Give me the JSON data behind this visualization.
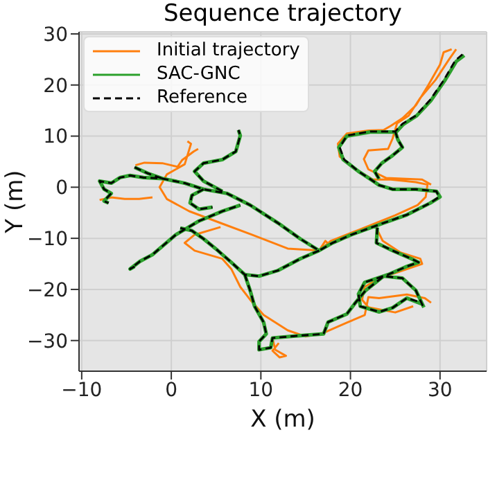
{
  "chart_data": {
    "type": "line",
    "title": "Sequence trajectory",
    "xlabel": "X (m)",
    "ylabel": "Y (m)",
    "xlim": [
      -10.3,
      35.2
    ],
    "ylim": [
      -36,
      30.4
    ],
    "xticks": [
      -10,
      0,
      10,
      20,
      30
    ],
    "yticks": [
      -30,
      -20,
      -10,
      0,
      10,
      20,
      30
    ],
    "grid": true,
    "legend": "top left",
    "marker": "none",
    "series": [
      {
        "name": "Initial trajectory",
        "color": "#ff7f0e",
        "line_style": "solid",
        "x": [
          31.3,
          30.4,
          30,
          28.7,
          27.3,
          25.8,
          24.5,
          23.7,
          22,
          19.6,
          18.6,
          18.8,
          20.6,
          22.5,
          24.5,
          27.3,
          28.6,
          28.4,
          27.5,
          25,
          21,
          17.8,
          16.5,
          17.5,
          17.2,
          16.5,
          13,
          9,
          5.5,
          2,
          -0.5,
          -1.3,
          -0.5,
          1.5,
          2.2,
          1.8,
          null,
          31.8,
          31,
          29.5,
          27.8,
          26.5,
          25.2,
          24.7,
          24.2,
          22,
          21.5,
          22,
          24,
          28,
          29,
          null,
          -4,
          -3,
          -1,
          0.7,
          1.2,
          2.5,
          3,
          null,
          -8,
          -6.7,
          -5.2,
          -3.6,
          -2.1,
          null,
          5.5,
          2.6,
          1.5,
          2.6,
          5.7,
          6.7,
          7.7,
          8.8,
          10.3,
          13,
          15,
          17,
          19.6,
          21.6,
          22,
          23.2,
          26.3,
          28.3,
          29,
          null,
          11.3,
          11.6,
          12.8,
          12.1,
          11.3,
          12,
          null,
          22.9,
          23.6,
          25.6,
          27.8,
          28,
          25.5,
          23,
          21.6,
          21.3,
          22,
          25,
          27
        ],
        "values": [
          27,
          26.4,
          24,
          20,
          16,
          13.5,
          12,
          11.2,
          11.1,
          10.5,
          8.5,
          6,
          3.5,
          1.5,
          1.5,
          1,
          0.5,
          -1.9,
          -3.5,
          -5.5,
          -8.3,
          -10.5,
          -12.4,
          -11,
          -10.5,
          -12.4,
          -12,
          -9.3,
          -7,
          -4.7,
          -2.3,
          0,
          2.5,
          4.5,
          8.5,
          9,
          null,
          27,
          25,
          21,
          17.5,
          14,
          12.5,
          9.5,
          7.5,
          7.2,
          5.5,
          3.5,
          1.8,
          1.5,
          0.5,
          null,
          4.3,
          4.8,
          4.7,
          4,
          5.3,
          7,
          7.5,
          null,
          -2.5,
          -2,
          -2.3,
          -2.3,
          -2,
          null,
          -7.8,
          -9.3,
          -10.9,
          -12.4,
          -14,
          -16,
          -19.5,
          -22,
          -25,
          -28,
          -29.2,
          -28.5,
          -26.5,
          -25,
          -21.5,
          -21.7,
          -21,
          -21.7,
          -22.6,
          null,
          -29.5,
          -31.8,
          -33,
          -33.3,
          -32,
          -30.5,
          null,
          -8,
          -10.5,
          -12.8,
          -14,
          -15,
          -16.5,
          -18,
          -19.5,
          -22,
          -23.5,
          -24.5,
          -23.3
        ]
      },
      {
        "name": "SAC-GNC",
        "color": "#2ca02c",
        "line_style": "solid",
        "x": [
          32.7,
          31.8,
          30.5,
          29,
          27.4,
          25.9,
          25.1,
          22.2,
          19.6,
          18.7,
          19.2,
          20.9,
          22.2,
          23.2,
          24.7,
          27.3,
          29.6,
          30,
          28.9,
          26.3,
          23.7,
          20.1,
          18,
          16.5,
          14.4,
          11.9,
          8.8,
          6.2,
          3.6,
          1.5,
          -1,
          -3.1,
          -4.6,
          -5.7,
          -6.7,
          -8,
          -7.5,
          -6.7,
          -7.5,
          -7,
          null,
          25,
          25.3,
          25.8,
          24.7,
          23.5,
          22.7,
          23.2,
          null,
          16.5,
          14.4,
          11.9,
          9.8,
          8.2,
          6.7,
          5.2,
          3.6,
          2.3,
          1,
          null,
          -4.1,
          -4.6,
          -3.5,
          -2.1,
          0.5,
          3.1,
          5.7,
          7.7,
          null,
          8.2,
          8.8,
          9.3,
          10.3,
          10.6,
          9.8,
          9.8,
          11.1,
          11.3,
          13.9,
          17,
          17.5,
          19.6,
          20.6,
          21.7,
          23.7,
          25.8,
          27.3,
          28.2,
          null,
          23,
          22.9,
          24.7,
          26.8,
          27.6,
          26.3,
          24.2,
          21.6,
          20.9,
          21.1,
          23.2,
          24.7,
          26.3,
          27.9,
          null,
          5.7,
          3.6,
          2.6,
          3.6,
          5.7,
          7.2,
          7.7,
          7.5,
          null,
          -4.1,
          -2.6,
          -1,
          null,
          3.6,
          2.3,
          2.1,
          3.1,
          4.6
        ],
        "values": [
          25.8,
          24.6,
          20.8,
          17,
          14,
          12.3,
          10.8,
          10.8,
          10,
          7.8,
          5.4,
          3.1,
          1.6,
          0.4,
          -0.4,
          -0.4,
          -0.8,
          -1.9,
          -3.1,
          -5.4,
          -7,
          -9.3,
          -10.9,
          -12.4,
          -10.1,
          -7,
          -3.5,
          -1.2,
          -0.4,
          0.8,
          1.7,
          1.9,
          2.3,
          1.9,
          0.8,
          1.2,
          -0.4,
          -1.2,
          -2.7,
          -3.1,
          null,
          10.9,
          9.3,
          7.8,
          6.2,
          4.7,
          3.1,
          1.6,
          null,
          -12.4,
          -14,
          -16.3,
          -17.4,
          -17.1,
          -14.7,
          -12.4,
          -10.1,
          -8.5,
          -8,
          null,
          -15.5,
          -16,
          -14.5,
          -13.2,
          -9.3,
          -6.6,
          -4.7,
          -3.5,
          null,
          -17.1,
          -20.2,
          -23.3,
          -26.4,
          -28.7,
          -30.2,
          -31.8,
          -31.4,
          -29.5,
          -29.1,
          -28.7,
          -26.4,
          -24.8,
          -22.5,
          -20.2,
          -17.4,
          -17.8,
          -20.2,
          -23.5,
          null,
          -7.9,
          -10.9,
          -12.4,
          -14,
          -14.7,
          -15.5,
          -17.1,
          -18.6,
          -20.9,
          -23.3,
          -24.4,
          -23.6,
          -21.7,
          -22.8,
          null,
          -0.8,
          1.2,
          3.1,
          4.7,
          5.4,
          7,
          10.1,
          11.2,
          null,
          3.9,
          2.7,
          1.7,
          null,
          -0.4,
          -1.6,
          -3.1,
          -4.3,
          -3.9
        ]
      },
      {
        "name": "Reference",
        "color": "#000000",
        "line_style": "dashed",
        "x": [
          32.5,
          31.7,
          30.4,
          28.9,
          27.3,
          25.8,
          25,
          22.2,
          19.6,
          18.8,
          19.3,
          20.9,
          22.2,
          23.2,
          24.7,
          27.3,
          29.6,
          29.9,
          28.9,
          26.3,
          23.7,
          20.1,
          18,
          16.5,
          14.4,
          11.9,
          8.8,
          6.2,
          3.6,
          1.5,
          -1,
          -3.1,
          -4.6,
          -5.7,
          -6.7,
          -8,
          -7.5,
          -6.7,
          -7.5,
          -7,
          null,
          25,
          25.3,
          25.8,
          24.7,
          23.5,
          22.7,
          23.2,
          null,
          16.5,
          14.4,
          11.9,
          9.8,
          8.2,
          6.7,
          5.2,
          3.6,
          2.3,
          1,
          null,
          -4.1,
          -4.6,
          -3.5,
          -2.1,
          0.5,
          3.1,
          5.7,
          7.7,
          null,
          8.2,
          8.8,
          9.3,
          10.3,
          10.6,
          9.8,
          9.8,
          11.1,
          11.3,
          13.9,
          17,
          17.5,
          19.6,
          20.6,
          21.7,
          23.7,
          25.8,
          27.3,
          28.1,
          null,
          23,
          22.9,
          24.7,
          26.8,
          27.6,
          26.3,
          24.2,
          21.6,
          20.9,
          21.1,
          23.2,
          24.7,
          26.3,
          27.8,
          null,
          5.7,
          3.6,
          2.6,
          3.6,
          5.7,
          7.2,
          7.7,
          7.5,
          null,
          -4.1,
          -2.6,
          -1,
          null,
          3.6,
          2.3,
          2.1,
          3.1,
          4.6
        ],
        "values": [
          26,
          24.8,
          20.9,
          17.1,
          14,
          12.4,
          10.9,
          10.9,
          10.1,
          7.8,
          5.4,
          3.1,
          1.6,
          0.4,
          -0.4,
          -0.4,
          -0.8,
          -1.9,
          -3.1,
          -5.4,
          -7,
          -9.3,
          -10.9,
          -12.4,
          -10.1,
          -7,
          -3.5,
          -1.2,
          -0.4,
          0.8,
          1.7,
          1.9,
          2.3,
          1.9,
          0.8,
          1.2,
          -0.4,
          -1.2,
          -2.7,
          -3.1,
          null,
          10.9,
          9.3,
          7.8,
          6.2,
          4.7,
          3.1,
          1.6,
          null,
          -12.4,
          -14,
          -16.3,
          -17.4,
          -17.1,
          -14.7,
          -12.4,
          -10.1,
          -8.5,
          -8,
          null,
          -15.5,
          -16,
          -14.5,
          -13.2,
          -9.3,
          -6.6,
          -4.7,
          -3.5,
          null,
          -17.1,
          -20.2,
          -23.3,
          -26.4,
          -28.7,
          -30.2,
          -31.8,
          -31.4,
          -29.5,
          -29.1,
          -28.7,
          -26.4,
          -24.8,
          -22.5,
          -20.2,
          -17.4,
          -17.8,
          -20.2,
          -23.3,
          null,
          -7.9,
          -10.9,
          -12.4,
          -14,
          -14.7,
          -15.5,
          -17.1,
          -18.6,
          -20.9,
          -23.3,
          -24.4,
          -23.6,
          -21.7,
          -22.5,
          null,
          -0.8,
          1.2,
          3.1,
          4.7,
          5.4,
          7,
          10.1,
          11.2,
          null,
          3.9,
          2.7,
          1.7,
          null,
          -0.4,
          -1.6,
          -3.1,
          -4.3,
          -3.9
        ]
      }
    ]
  }
}
